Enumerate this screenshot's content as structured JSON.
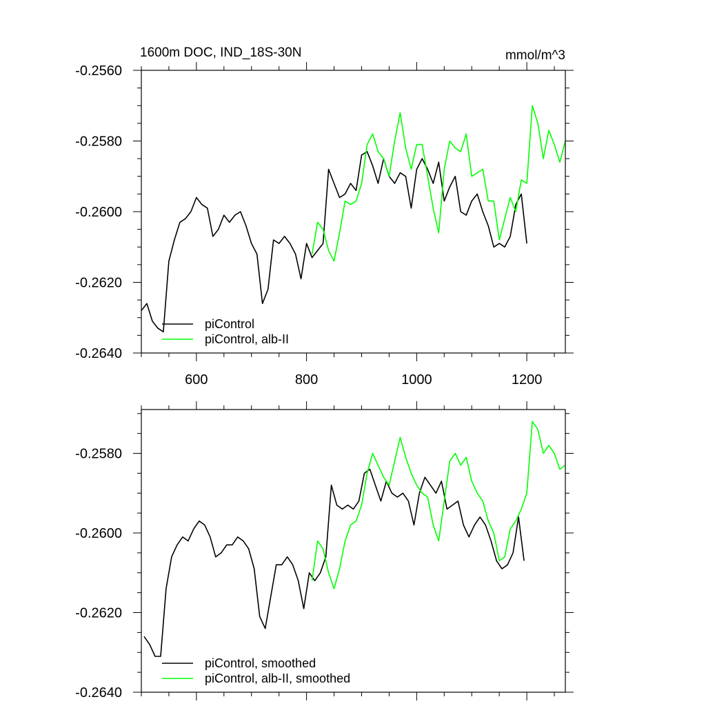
{
  "chart_data": [
    {
      "type": "line",
      "title": "1600m DOC, IND_18S-30N",
      "units": "mmol/m^3",
      "xlabel": "",
      "ylabel": "",
      "xlim": [
        500,
        1270
      ],
      "ylim": [
        -0.264,
        -0.256
      ],
      "xticks": [
        600,
        800,
        1000,
        1200
      ],
      "xtick_labels": [
        "600",
        "800",
        "1000",
        "1200"
      ],
      "yticks": [
        -0.264,
        -0.262,
        -0.26,
        -0.258,
        -0.256
      ],
      "ytick_labels": [
        "-0.2640",
        "-0.2620",
        "-0.2600",
        "-0.2580",
        "-0.2560"
      ],
      "grid": false,
      "legend_position": "bottom-left",
      "series": [
        {
          "name": "piControl",
          "color": "#000000",
          "x": [
            500,
            510,
            520,
            530,
            540,
            550,
            560,
            570,
            580,
            590,
            600,
            610,
            620,
            630,
            640,
            650,
            660,
            670,
            680,
            690,
            700,
            710,
            720,
            730,
            740,
            750,
            760,
            770,
            780,
            790,
            800,
            810,
            820,
            830,
            840,
            850,
            860,
            870,
            880,
            890,
            900,
            910,
            920,
            930,
            940,
            950,
            960,
            970,
            980,
            990,
            1000,
            1010,
            1020,
            1030,
            1040,
            1050,
            1060,
            1070,
            1080,
            1090,
            1100,
            1110,
            1120,
            1130,
            1140,
            1150,
            1160,
            1170,
            1180,
            1190,
            1200
          ],
          "y": [
            -0.2628,
            -0.2626,
            -0.2631,
            -0.2633,
            -0.2634,
            -0.2614,
            -0.2608,
            -0.2603,
            -0.2602,
            -0.26,
            -0.2596,
            -0.2598,
            -0.2599,
            -0.2607,
            -0.2605,
            -0.2601,
            -0.2603,
            -0.2601,
            -0.26,
            -0.2604,
            -0.2609,
            -0.2612,
            -0.2626,
            -0.2622,
            -0.2608,
            -0.2609,
            -0.2607,
            -0.2609,
            -0.2612,
            -0.2619,
            -0.2609,
            -0.2613,
            -0.2611,
            -0.2609,
            -0.2588,
            -0.2592,
            -0.2596,
            -0.2595,
            -0.2592,
            -0.2594,
            -0.2584,
            -0.2583,
            -0.2587,
            -0.2592,
            -0.2585,
            -0.259,
            -0.2592,
            -0.2589,
            -0.259,
            -0.2599,
            -0.2588,
            -0.2585,
            -0.2588,
            -0.2592,
            -0.2586,
            -0.2597,
            -0.2593,
            -0.259,
            -0.26,
            -0.2601,
            -0.2597,
            -0.2595,
            -0.26,
            -0.2604,
            -0.261,
            -0.2609,
            -0.261,
            -0.2607,
            -0.2598,
            -0.2595,
            -0.2609
          ]
        },
        {
          "name": "piControl, alb-II",
          "color": "#00ff00",
          "x": [
            810,
            820,
            830,
            840,
            850,
            860,
            870,
            880,
            890,
            900,
            910,
            920,
            930,
            940,
            950,
            960,
            970,
            980,
            990,
            1000,
            1010,
            1020,
            1030,
            1040,
            1050,
            1060,
            1070,
            1080,
            1090,
            1100,
            1110,
            1120,
            1130,
            1140,
            1150,
            1160,
            1170,
            1180,
            1190,
            1200,
            1210,
            1220,
            1230,
            1240,
            1250,
            1260,
            1270
          ],
          "y": [
            -0.2612,
            -0.2603,
            -0.2605,
            -0.2611,
            -0.2614,
            -0.2606,
            -0.2597,
            -0.2598,
            -0.2597,
            -0.2592,
            -0.2581,
            -0.2578,
            -0.2583,
            -0.2585,
            -0.259,
            -0.258,
            -0.2572,
            -0.2582,
            -0.2588,
            -0.2581,
            -0.2581,
            -0.259,
            -0.2599,
            -0.2606,
            -0.2588,
            -0.258,
            -0.2582,
            -0.2583,
            -0.2578,
            -0.259,
            -0.2589,
            -0.2588,
            -0.2597,
            -0.2597,
            -0.2608,
            -0.2602,
            -0.2596,
            -0.26,
            -0.2591,
            -0.2592,
            -0.257,
            -0.2575,
            -0.2585,
            -0.2577,
            -0.2581,
            -0.2586,
            -0.258
          ]
        }
      ]
    },
    {
      "type": "line",
      "title": "",
      "xlabel": "",
      "ylabel": "",
      "xlim": [
        500,
        1270
      ],
      "ylim": [
        -0.264,
        -0.2569
      ],
      "xticks": [
        600,
        800,
        1000,
        1200
      ],
      "xtick_labels": [],
      "yticks": [
        -0.264,
        -0.262,
        -0.26,
        -0.258
      ],
      "ytick_labels": [
        "-0.2640",
        "-0.2620",
        "-0.2600",
        "-0.2580"
      ],
      "grid": false,
      "legend_position": "bottom-left",
      "series": [
        {
          "name": "piControl, smoothed",
          "color": "#000000",
          "x": [
            505,
            515,
            525,
            535,
            545,
            555,
            565,
            575,
            585,
            595,
            605,
            615,
            625,
            635,
            645,
            655,
            665,
            675,
            685,
            695,
            705,
            715,
            725,
            735,
            745,
            755,
            765,
            775,
            785,
            795,
            805,
            815,
            825,
            835,
            845,
            855,
            865,
            875,
            885,
            895,
            905,
            915,
            925,
            935,
            945,
            955,
            965,
            975,
            985,
            995,
            1005,
            1015,
            1025,
            1035,
            1045,
            1055,
            1065,
            1075,
            1085,
            1095,
            1105,
            1115,
            1125,
            1135,
            1145,
            1155,
            1165,
            1175,
            1185,
            1195
          ],
          "y": [
            -0.2626,
            -0.2628,
            -0.2631,
            -0.2631,
            -0.2614,
            -0.2606,
            -0.2603,
            -0.2601,
            -0.2602,
            -0.2599,
            -0.2597,
            -0.2598,
            -0.2601,
            -0.2606,
            -0.2605,
            -0.2603,
            -0.2603,
            -0.2601,
            -0.2602,
            -0.2604,
            -0.2609,
            -0.2621,
            -0.2624,
            -0.2616,
            -0.2608,
            -0.2608,
            -0.2606,
            -0.2608,
            -0.2612,
            -0.2619,
            -0.261,
            -0.2612,
            -0.261,
            -0.2606,
            -0.2588,
            -0.2593,
            -0.2594,
            -0.2593,
            -0.2594,
            -0.2592,
            -0.2585,
            -0.2584,
            -0.2588,
            -0.2592,
            -0.2587,
            -0.259,
            -0.2591,
            -0.259,
            -0.2592,
            -0.2598,
            -0.259,
            -0.2586,
            -0.2588,
            -0.259,
            -0.2587,
            -0.2594,
            -0.2593,
            -0.2592,
            -0.2598,
            -0.2601,
            -0.2598,
            -0.2596,
            -0.2598,
            -0.2602,
            -0.2607,
            -0.2609,
            -0.2608,
            -0.2605,
            -0.2596,
            -0.2607
          ]
        },
        {
          "name": "piControl, alb-II, smoothed",
          "color": "#00ff00",
          "x": [
            810,
            820,
            830,
            840,
            850,
            860,
            870,
            880,
            890,
            900,
            910,
            920,
            930,
            940,
            950,
            960,
            970,
            980,
            990,
            1000,
            1010,
            1020,
            1030,
            1040,
            1050,
            1060,
            1070,
            1080,
            1090,
            1100,
            1110,
            1120,
            1130,
            1140,
            1150,
            1160,
            1170,
            1180,
            1190,
            1200,
            1210,
            1220,
            1230,
            1240,
            1250,
            1260,
            1270
          ],
          "y": [
            -0.2612,
            -0.2602,
            -0.2604,
            -0.261,
            -0.2614,
            -0.2609,
            -0.2602,
            -0.2598,
            -0.2597,
            -0.2593,
            -0.2585,
            -0.258,
            -0.2583,
            -0.2586,
            -0.2588,
            -0.2582,
            -0.2576,
            -0.2581,
            -0.2585,
            -0.2588,
            -0.259,
            -0.2591,
            -0.2598,
            -0.2602,
            -0.2592,
            -0.2582,
            -0.258,
            -0.2583,
            -0.2581,
            -0.2587,
            -0.259,
            -0.2592,
            -0.2597,
            -0.26,
            -0.2607,
            -0.2606,
            -0.2599,
            -0.2597,
            -0.2594,
            -0.259,
            -0.2572,
            -0.2574,
            -0.258,
            -0.2578,
            -0.258,
            -0.2584,
            -0.2583
          ]
        }
      ]
    }
  ]
}
